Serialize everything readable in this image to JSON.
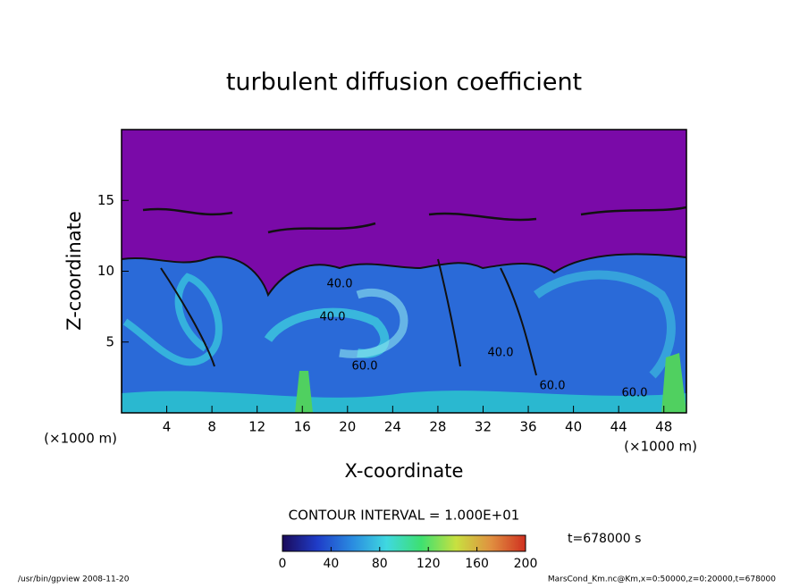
{
  "chart_data": {
    "type": "contour",
    "title": "turbulent diffusion coefficient",
    "xlabel": "X-coordinate",
    "ylabel": "Z-coordinate",
    "x_unit_left": "(×1000 m)",
    "x_unit_right": "(×1000 m)",
    "xlim": [
      0,
      50
    ],
    "xticks": [
      4,
      8,
      12,
      16,
      20,
      24,
      28,
      32,
      36,
      40,
      44,
      48
    ],
    "ylim": [
      0,
      20
    ],
    "yticks": [
      5,
      10,
      15
    ],
    "contour_interval": "CONTOUR INTERVAL = 1.000E+01",
    "contour_labels": [
      "40.0",
      "40.0",
      "60.0",
      "40.0",
      "60.0",
      "60.0"
    ],
    "clim": [
      0,
      200
    ],
    "cticks": [
      0,
      40,
      80,
      120,
      160,
      200
    ],
    "colormap": [
      "#1a0a5a",
      "#1f3cc8",
      "#2a8ae0",
      "#3fd8e0",
      "#3ee070",
      "#c8e040",
      "#e09040",
      "#d03020"
    ],
    "time_label": "t=678000 s",
    "footer_left": "/usr/bin/gpview   2008-11-20",
    "footer_right": "MarsCond_Km.nc@Km,x=0:50000,z=0:20000,t=678000"
  }
}
